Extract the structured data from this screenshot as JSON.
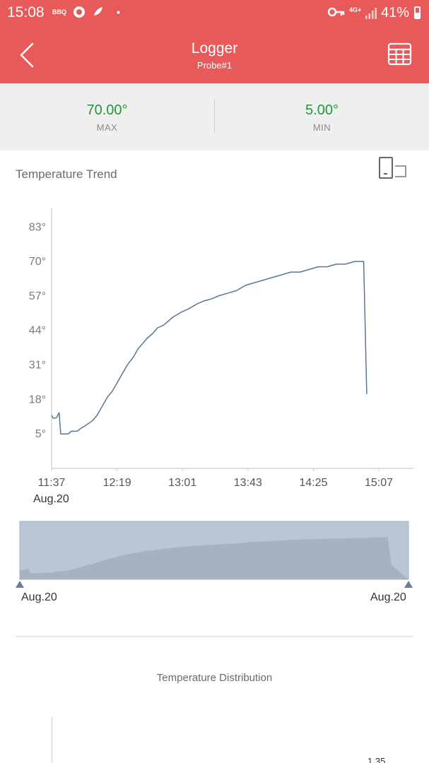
{
  "status_bar": {
    "time": "15:08",
    "bbq_label": "BBQ",
    "network": "4G+",
    "battery": "41%"
  },
  "header": {
    "title": "Logger",
    "subtitle": "Probe#1",
    "back_icon": "chevron-left-icon",
    "table_icon": "table-grid-icon",
    "color": "#e85a59"
  },
  "stats": {
    "max_value": "70.00°",
    "max_label": "MAX",
    "min_value": "5.00°",
    "min_label": "MIN",
    "value_color": "#1e9a34"
  },
  "trend": {
    "title": "Temperature Trend",
    "rotate_icon": "rotate-screen-icon",
    "date_label": "Aug.20"
  },
  "chart_data": {
    "type": "line",
    "title": "",
    "xlabel": "",
    "ylabel": "",
    "x_ticks": [
      "11:37",
      "12:19",
      "13:01",
      "13:43",
      "14:25",
      "15:07"
    ],
    "y_ticks": [
      "5°",
      "18°",
      "31°",
      "44°",
      "57°",
      "70°",
      "83°"
    ],
    "ylim": [
      -8,
      90
    ],
    "xlim_minutes": [
      0,
      216
    ],
    "line_color": "#5a7595",
    "series": [
      {
        "x_minutes": [
          0,
          1,
          3,
          5,
          6,
          7,
          11,
          13,
          17,
          19,
          22,
          27,
          30,
          34,
          37,
          40,
          43,
          47,
          50,
          54,
          57,
          60,
          63,
          67,
          70,
          74,
          80,
          86,
          90,
          96,
          100,
          106,
          110,
          116,
          122,
          128,
          134,
          140,
          146,
          152,
          158,
          164,
          170,
          176,
          182,
          188,
          194,
          200,
          204,
          206,
          208
        ],
        "y": [
          12,
          11,
          11,
          13,
          5,
          5,
          5,
          6,
          6,
          7,
          8,
          10,
          12,
          16,
          19,
          21,
          24,
          28,
          31,
          34,
          37,
          39,
          41,
          43,
          45,
          46,
          49,
          51,
          52,
          54,
          55,
          56,
          57,
          58,
          59,
          61,
          62,
          63,
          64,
          65,
          66,
          66,
          67,
          68,
          68,
          69,
          69,
          70,
          70,
          70,
          20
        ]
      }
    ]
  },
  "overview": {
    "start_date": "Aug.20",
    "end_date": "Aug.20"
  },
  "distribution": {
    "title": "Temperature Distribution",
    "partial_label": "1.35"
  }
}
